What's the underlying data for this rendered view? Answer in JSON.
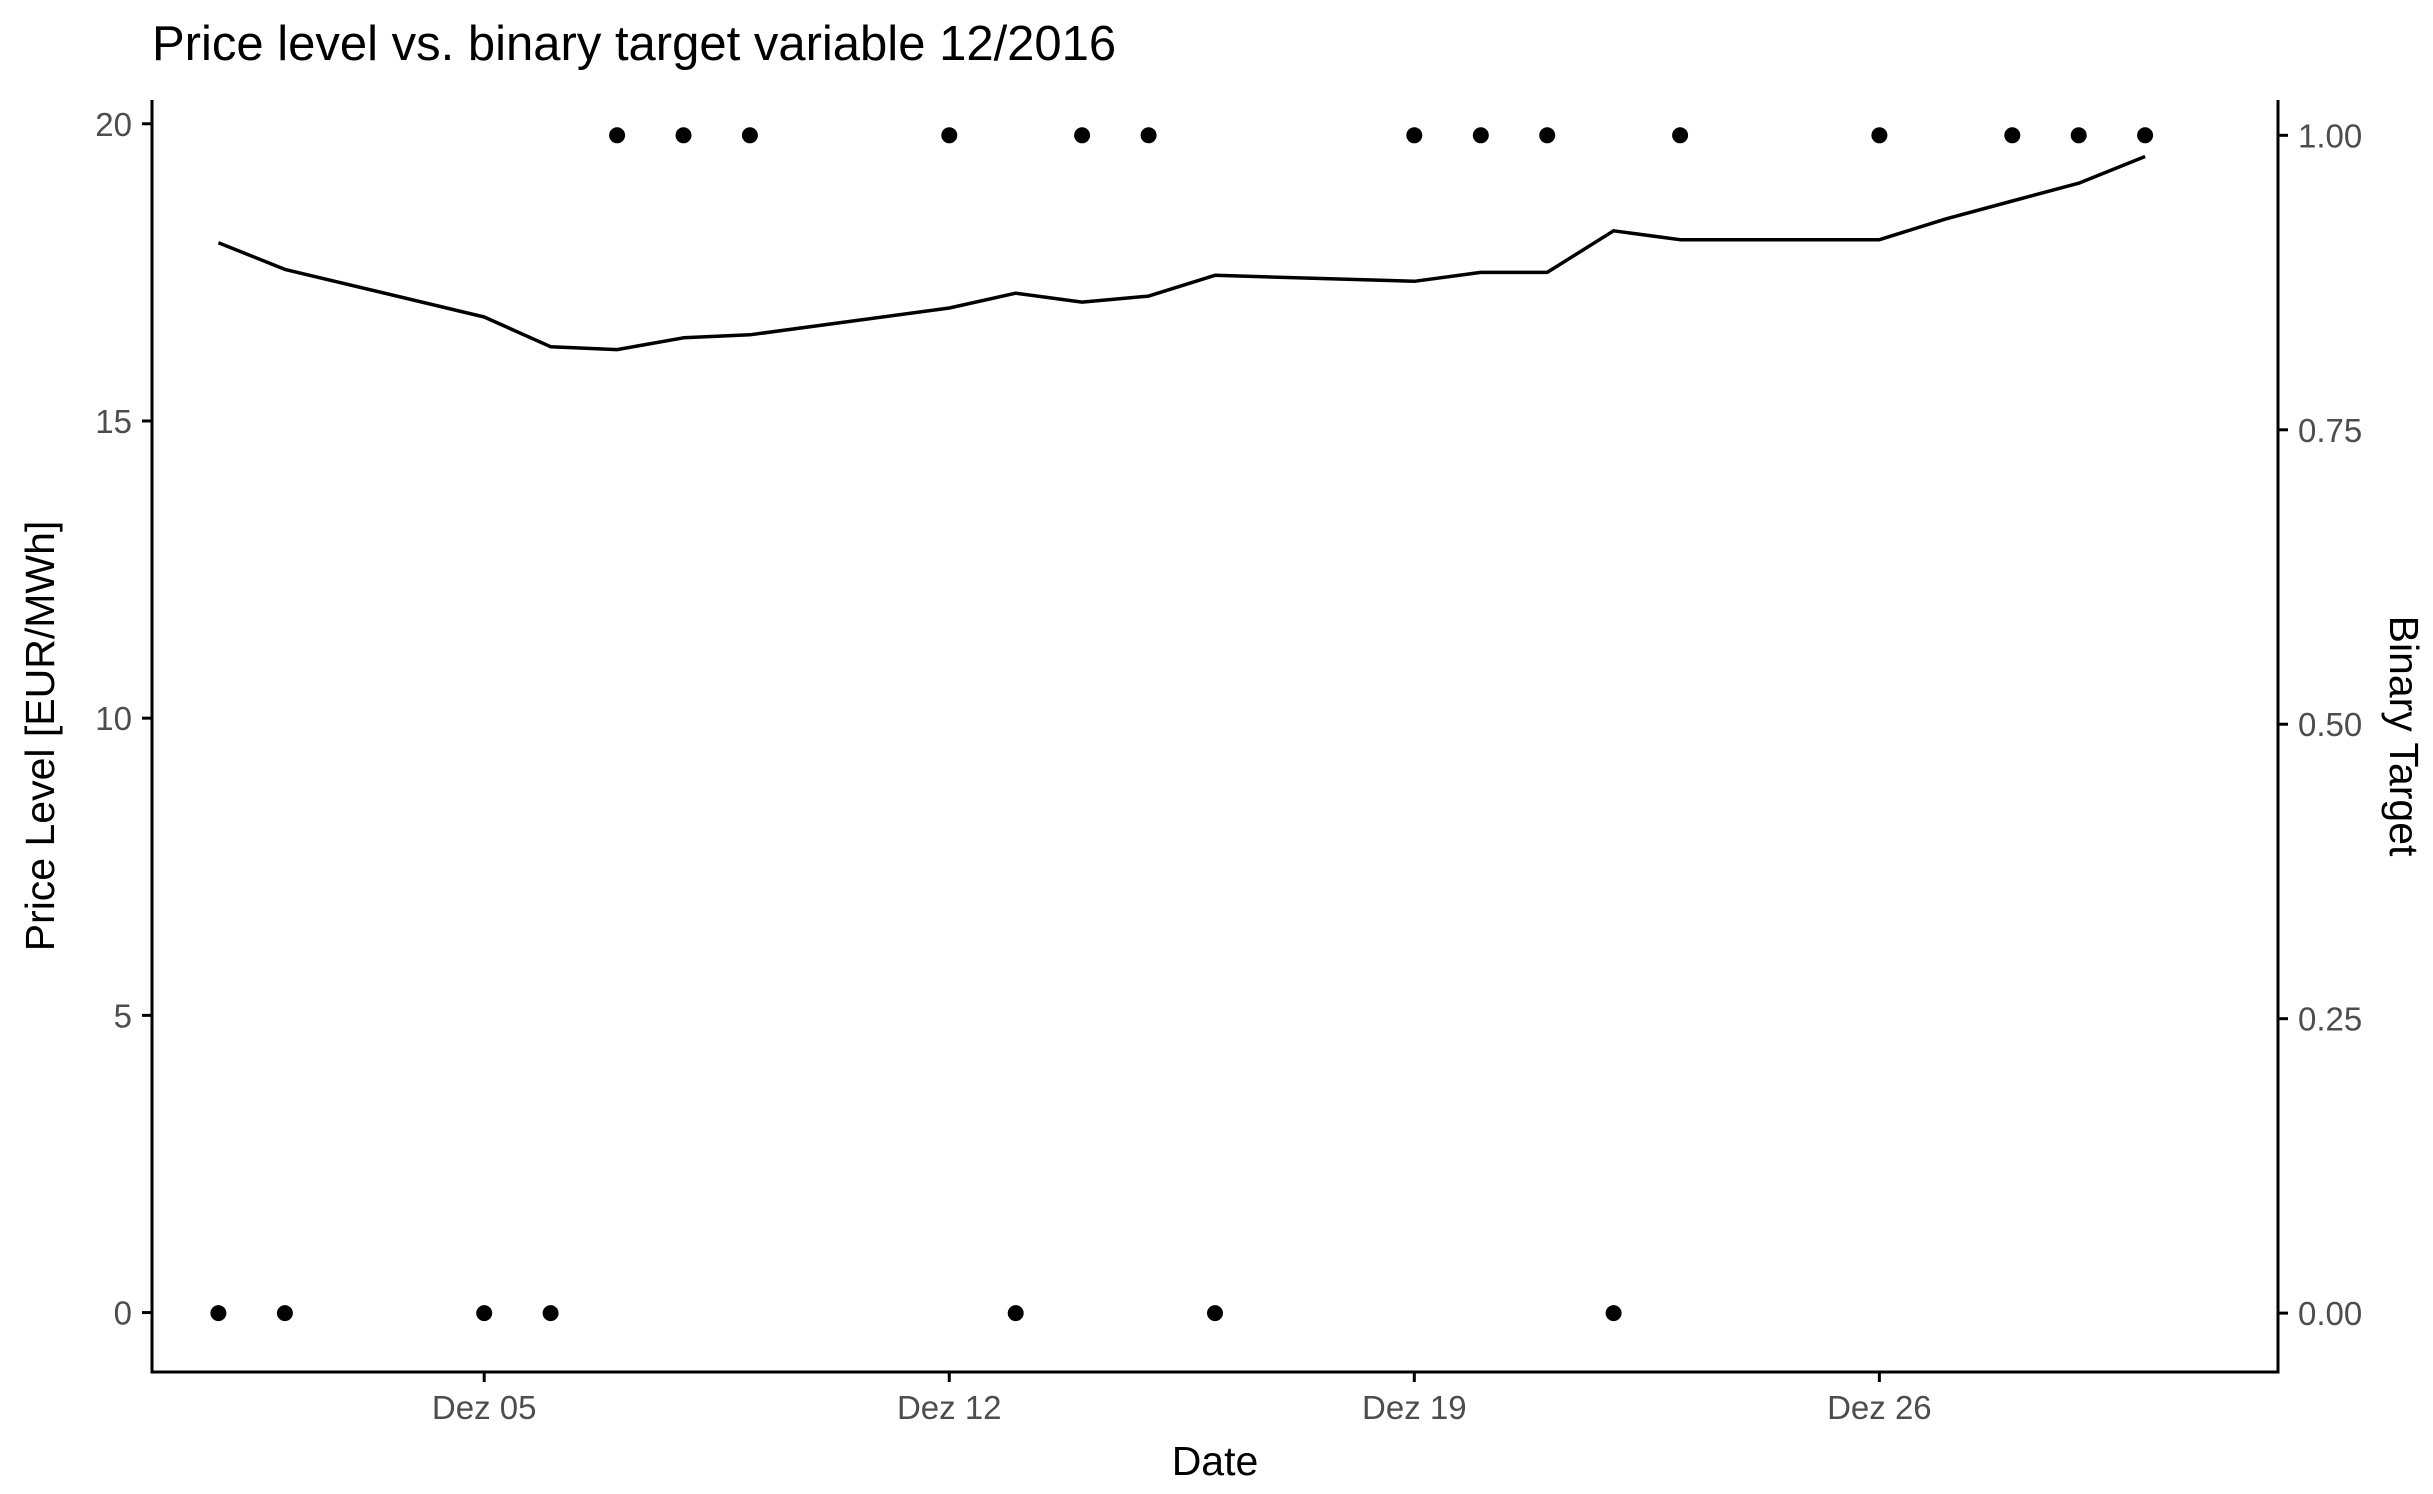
{
  "chart_data": {
    "type": "line+scatter",
    "title": "Price level vs. binary target variable 12/2016",
    "xlabel": "Date",
    "ylabel": "Price Level [EUR/MWh]",
    "y2label": "Binary Target",
    "x_ticks": [
      {
        "date": "2016-12-05",
        "label": "Dez 05"
      },
      {
        "date": "2016-12-12",
        "label": "Dez 12"
      },
      {
        "date": "2016-12-19",
        "label": "Dez 19"
      },
      {
        "date": "2016-12-26",
        "label": "Dez 26"
      }
    ],
    "xlim": [
      "2016-11-30",
      "2017-01-01"
    ],
    "ylim": [
      -1,
      20.4
    ],
    "y_ticks": [
      0,
      5,
      10,
      15,
      20
    ],
    "y2lim": [
      -0.05,
      1.03
    ],
    "y2_ticks": [
      "0.00",
      "0.25",
      "0.50",
      "0.75",
      "1.00"
    ],
    "grid": false,
    "price_series": {
      "x": [
        "2016-12-01",
        "2016-12-02",
        "2016-12-05",
        "2016-12-06",
        "2016-12-07",
        "2016-12-08",
        "2016-12-09",
        "2016-12-12",
        "2016-12-13",
        "2016-12-14",
        "2016-12-15",
        "2016-12-16",
        "2016-12-19",
        "2016-12-20",
        "2016-12-21",
        "2016-12-22",
        "2016-12-23",
        "2016-12-26",
        "2016-12-27",
        "2016-12-28",
        "2016-12-29",
        "2016-12-30"
      ],
      "y": [
        18.0,
        17.55,
        16.75,
        16.25,
        16.2,
        16.4,
        16.45,
        16.9,
        17.15,
        17.0,
        17.1,
        17.45,
        17.35,
        17.5,
        17.5,
        18.2,
        18.05,
        18.05,
        18.4,
        18.7,
        19.0,
        19.45
      ]
    },
    "binary_series": {
      "x": [
        "2016-12-01",
        "2016-12-02",
        "2016-12-05",
        "2016-12-06",
        "2016-12-07",
        "2016-12-08",
        "2016-12-09",
        "2016-12-12",
        "2016-12-13",
        "2016-12-14",
        "2016-12-15",
        "2016-12-16",
        "2016-12-19",
        "2016-12-20",
        "2016-12-21",
        "2016-12-22",
        "2016-12-23",
        "2016-12-26",
        "2016-12-28",
        "2016-12-29",
        "2016-12-30"
      ],
      "y": [
        0,
        0,
        0,
        0,
        1,
        1,
        1,
        1,
        0,
        1,
        1,
        0,
        1,
        1,
        1,
        0,
        1,
        1,
        1,
        1,
        1
      ]
    }
  }
}
